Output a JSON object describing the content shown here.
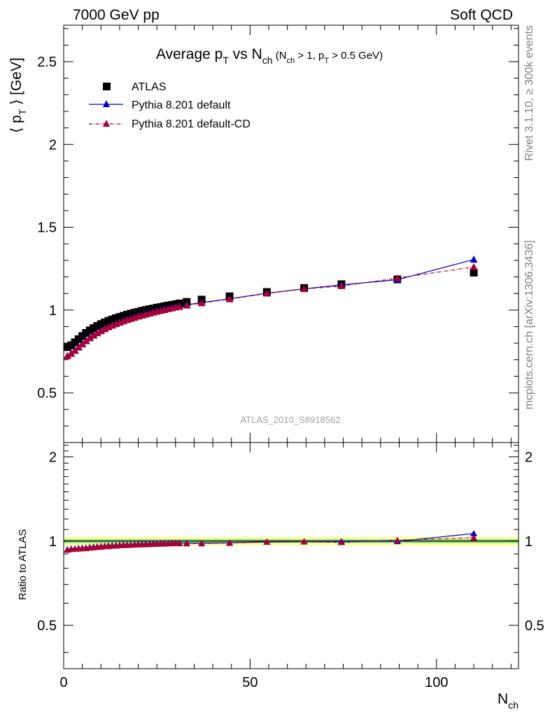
{
  "header": {
    "left": "7000 GeV pp",
    "right": "Soft QCD"
  },
  "side_labels": {
    "rivet": "Rivet 3.1.10, ≥ 300k events",
    "mcplots": "mcplots.cern.ch [arXiv:1306.3436]"
  },
  "colors": {
    "data": "#000000",
    "default": "#0000cc",
    "default_cd": "#aa0033",
    "band_inner": "#7fe07f",
    "band_outer": "#ffff99"
  },
  "chart_data": [
    {
      "type": "scatter",
      "title": "Average p_T vs N_ch (N_ch > 1, p_T > 0.5 GeV)",
      "analysis_label": "ATLAS_2010_S8918562",
      "ylabel": "⟨ p_T ⟩  [GeV]",
      "xlabel": "",
      "xlim": [
        0,
        122
      ],
      "ylim": [
        0.2,
        2.72
      ],
      "yticks": [
        0.5,
        1,
        1.5,
        2,
        2.5
      ],
      "ytick_labels": [
        "0.5",
        "1",
        "1.5",
        "2",
        "2.5"
      ],
      "grid": false,
      "legend_position": "top-left",
      "series": [
        {
          "name": "ATLAS",
          "marker": "square",
          "x": [
            1,
            2,
            3,
            4,
            5,
            6,
            7,
            8,
            9,
            10,
            11,
            12,
            13,
            14,
            15,
            16,
            17,
            18,
            19,
            20,
            21,
            22,
            23,
            24,
            25,
            26,
            27,
            28,
            29,
            30,
            31,
            33,
            37,
            44.5,
            54.5,
            64.5,
            74.5,
            89.5,
            110
          ],
          "y": [
            0.776,
            0.787,
            0.805,
            0.824,
            0.843,
            0.862,
            0.877,
            0.891,
            0.904,
            0.915,
            0.925,
            0.935,
            0.943,
            0.951,
            0.958,
            0.965,
            0.972,
            0.978,
            0.984,
            0.989,
            0.995,
            1.0,
            1.005,
            1.009,
            1.014,
            1.018,
            1.023,
            1.027,
            1.031,
            1.035,
            1.04,
            1.049,
            1.063,
            1.083,
            1.109,
            1.133,
            1.156,
            1.185,
            1.226
          ]
        },
        {
          "name": "Pythia 8.201 default",
          "marker": "triangle",
          "x": [
            1,
            2,
            3,
            4,
            5,
            6,
            7,
            8,
            9,
            10,
            11,
            12,
            13,
            14,
            15,
            16,
            17,
            18,
            19,
            20,
            21,
            22,
            23,
            24,
            25,
            26,
            27,
            28,
            29,
            30,
            31,
            33,
            37,
            44.5,
            54.5,
            64.5,
            74.5,
            89.5,
            110
          ],
          "y": [
            0.724,
            0.738,
            0.757,
            0.777,
            0.797,
            0.816,
            0.834,
            0.85,
            0.864,
            0.877,
            0.889,
            0.9,
            0.91,
            0.919,
            0.928,
            0.936,
            0.944,
            0.951,
            0.958,
            0.965,
            0.971,
            0.977,
            0.983,
            0.989,
            0.995,
            1.0,
            1.005,
            1.01,
            1.015,
            1.02,
            1.024,
            1.032,
            1.045,
            1.068,
            1.102,
            1.128,
            1.152,
            1.183,
            1.305
          ]
        },
        {
          "name": "Pythia 8.201 default-CD",
          "marker": "triangle",
          "x": [
            1,
            2,
            3,
            4,
            5,
            6,
            7,
            8,
            9,
            10,
            11,
            12,
            13,
            14,
            15,
            16,
            17,
            18,
            19,
            20,
            21,
            22,
            23,
            24,
            25,
            26,
            27,
            28,
            29,
            30,
            31,
            33,
            37,
            44.5,
            54.5,
            64.5,
            74.5,
            89.5,
            110
          ],
          "y": [
            0.722,
            0.736,
            0.754,
            0.774,
            0.793,
            0.812,
            0.83,
            0.846,
            0.86,
            0.873,
            0.885,
            0.896,
            0.906,
            0.915,
            0.924,
            0.932,
            0.94,
            0.947,
            0.954,
            0.961,
            0.967,
            0.973,
            0.979,
            0.985,
            0.991,
            0.996,
            1.001,
            1.006,
            1.011,
            1.016,
            1.02,
            1.028,
            1.042,
            1.066,
            1.1,
            1.127,
            1.145,
            1.193,
            1.26
          ]
        }
      ]
    },
    {
      "type": "line",
      "title": "",
      "xlabel": "N_ch",
      "ylabel": "Ratio to ATLAS",
      "xlim": [
        0,
        122
      ],
      "ylim": [
        0.35,
        2.25
      ],
      "xticks": [
        0,
        50,
        100
      ],
      "xtick_labels": [
        "0",
        "50",
        "100"
      ],
      "yticks": [
        0.5,
        1,
        2
      ],
      "ytick_labels": [
        "0.5",
        "1",
        "2"
      ],
      "reference_line": 1,
      "band_inner": [
        0.985,
        1.015
      ],
      "band_outer": [
        0.965,
        1.035
      ],
      "series": [
        {
          "name": "Pythia 8.201 default",
          "x": [
            1,
            2,
            3,
            4,
            5,
            6,
            7,
            8,
            9,
            10,
            11,
            12,
            13,
            14,
            15,
            16,
            17,
            18,
            19,
            20,
            21,
            22,
            23,
            24,
            25,
            26,
            27,
            28,
            29,
            30,
            31,
            33,
            37,
            44.5,
            54.5,
            64.5,
            74.5,
            89.5,
            110
          ],
          "y": [
            0.933,
            0.938,
            0.94,
            0.943,
            0.945,
            0.947,
            0.951,
            0.954,
            0.956,
            0.958,
            0.961,
            0.963,
            0.965,
            0.966,
            0.969,
            0.97,
            0.971,
            0.972,
            0.974,
            0.976,
            0.976,
            0.977,
            0.978,
            0.98,
            0.981,
            0.982,
            0.982,
            0.983,
            0.984,
            0.986,
            0.985,
            0.984,
            0.983,
            0.986,
            0.994,
            0.996,
            0.997,
            0.998,
            1.064
          ]
        },
        {
          "name": "Pythia 8.201 default-CD",
          "x": [
            1,
            2,
            3,
            4,
            5,
            6,
            7,
            8,
            9,
            10,
            11,
            12,
            13,
            14,
            15,
            16,
            17,
            18,
            19,
            20,
            21,
            22,
            23,
            24,
            25,
            26,
            27,
            28,
            29,
            30,
            31,
            33,
            37,
            44.5,
            54.5,
            64.5,
            74.5,
            89.5,
            110
          ],
          "y": [
            0.93,
            0.935,
            0.937,
            0.939,
            0.941,
            0.942,
            0.946,
            0.949,
            0.951,
            0.954,
            0.957,
            0.958,
            0.961,
            0.962,
            0.965,
            0.966,
            0.967,
            0.968,
            0.97,
            0.972,
            0.972,
            0.973,
            0.974,
            0.976,
            0.977,
            0.978,
            0.978,
            0.98,
            0.981,
            0.982,
            0.981,
            0.98,
            0.98,
            0.984,
            0.992,
            0.995,
            0.99,
            1.007,
            1.028
          ]
        }
      ]
    }
  ]
}
